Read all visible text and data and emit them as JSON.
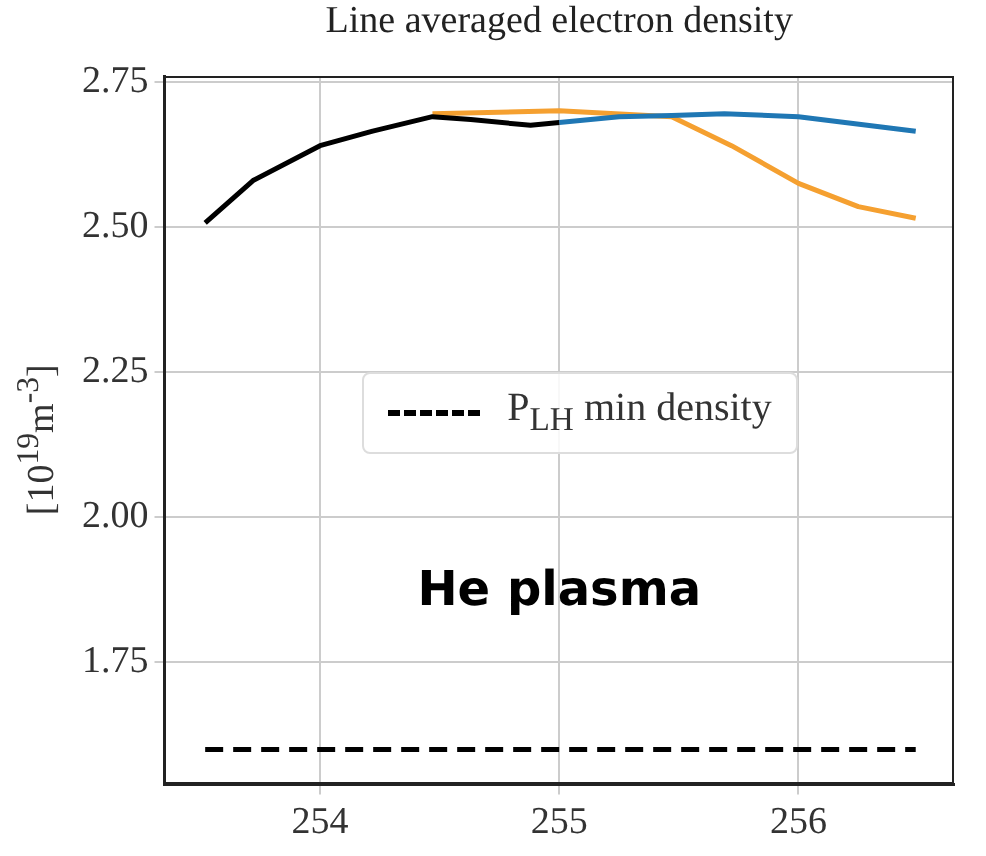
{
  "chart_data": {
    "type": "line",
    "title": "Line averaged electron density",
    "ylabel": "[10$^{19}$m$^{-3}$]",
    "series": [
      {
        "color": "#000000",
        "x": [
          253.52,
          253.72,
          254.0,
          254.22,
          254.47,
          254.63,
          254.88,
          255.0
        ],
        "values": [
          2.507,
          2.58,
          2.64,
          2.665,
          2.69,
          2.685,
          2.675,
          2.68
        ]
      },
      {
        "color": "#1f77b4",
        "x": [
          255.0,
          255.25,
          255.47,
          255.69,
          256.0,
          256.49
        ],
        "values": [
          2.68,
          2.69,
          2.692,
          2.695,
          2.69,
          2.665
        ]
      },
      {
        "color": "#f5a030",
        "x": [
          254.47,
          255.0,
          255.47,
          255.72,
          256.0,
          256.25,
          256.49
        ],
        "values": [
          2.695,
          2.7,
          2.69,
          2.64,
          2.575,
          2.535,
          2.515
        ]
      },
      {
        "name": "P$_{LH}$ min density",
        "color": "#000000",
        "line_style": "dashed",
        "x": [
          253.52,
          256.49
        ],
        "values": [
          1.6,
          1.6
        ]
      }
    ],
    "annotations": [
      "He plasma"
    ],
    "xlim": [
      253.35,
      256.65
    ],
    "xticks": [
      254,
      255,
      256
    ],
    "ylim": [
      1.54,
      2.76
    ],
    "yticks": [
      1.75,
      {
        "value": 2.0,
        "label": "2.00"
      },
      2.25,
      {
        "value": 2.5,
        "label": "2.50"
      },
      2.75
    ],
    "grid": true,
    "legend": "center"
  }
}
